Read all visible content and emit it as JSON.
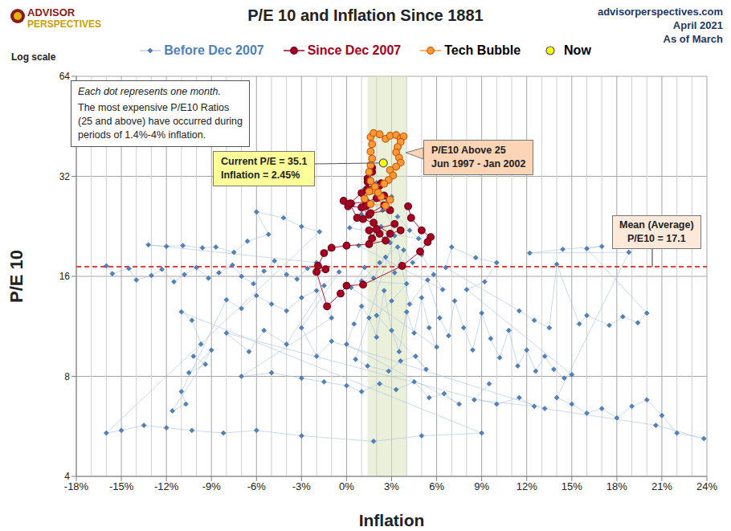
{
  "chart_data": {
    "type": "scatter",
    "title": "P/E 10 and Inflation Since 1881",
    "logo": [
      "ADVISOR",
      "PERSPECTIVES"
    ],
    "source": [
      "advisorperspectives.com",
      "April 2021",
      "As of March"
    ],
    "x_label": "Inflation",
    "y_label": "P/E 10",
    "y_scale_label": "Log scale",
    "log": "y",
    "grid": true,
    "legend": "top",
    "xlim": [
      -18,
      24
    ],
    "xticks": [
      {
        "value": -18,
        "label": "-18%"
      },
      {
        "value": -15,
        "label": "-15%"
      },
      {
        "value": -12,
        "label": "-12%"
      },
      {
        "value": -9,
        "label": "-9%"
      },
      {
        "value": -6,
        "label": "-6%"
      },
      {
        "value": -3,
        "label": "-3%"
      },
      {
        "value": 0,
        "label": "0%"
      },
      {
        "value": 3,
        "label": "3%"
      },
      {
        "value": 6,
        "label": "6%"
      },
      {
        "value": 9,
        "label": "9%"
      },
      {
        "value": 12,
        "label": "12%"
      },
      {
        "value": 15,
        "label": "15%"
      },
      {
        "value": 18,
        "label": "18%"
      },
      {
        "value": 21,
        "label": "21%"
      },
      {
        "value": 24,
        "label": "24%"
      }
    ],
    "ylim": [
      4,
      64
    ],
    "yticks": [
      4,
      8,
      16,
      32,
      64
    ],
    "band": [
      1.4,
      4
    ],
    "mean": {
      "value": 17.1,
      "label": [
        "Mean (Average)",
        "P/E10 = 17.1"
      ]
    },
    "note": [
      "Each dot represents one month.",
      "The most expensive P/E10 Ratios",
      "(25 and above) have occurred during",
      "periods of 1.4%-4% inflation."
    ],
    "annotations": [
      {
        "text": [
          "Current P/E = 35.1",
          "Inflation = 2.45%"
        ],
        "color": "#ffff99"
      },
      {
        "text": [
          "P/E10 Above 25",
          "Jun 1997 - Jan 2002"
        ],
        "color": "#fbd5b5"
      }
    ],
    "series": [
      {
        "name": "Before Dec 2007",
        "color": "#4f81bd",
        "marker": "diamond",
        "line_style": "solid",
        "x": [
          -16,
          -15.6,
          -14.5,
          -14,
          -13,
          -12.3,
          -11.5,
          -10.8,
          -10,
          -9.2,
          -8.5,
          -7.6,
          -7,
          -6.2,
          -5.5,
          -4.8,
          -4,
          -3.3,
          -2.6,
          -2,
          -13.2,
          -12,
          -10.9,
          -9.6,
          -8.7,
          -7.5,
          -6.6,
          -5.2,
          -6,
          -4.2,
          -3,
          -1.8,
          -16,
          -15,
          -13.5,
          -12,
          -10.3,
          -8.2,
          -6,
          -3,
          1.8,
          5,
          9,
          -11,
          -10.3,
          -9.7,
          -10.2,
          -9.4,
          -10.5,
          -9,
          -11.6,
          -10.7,
          -11,
          -8,
          -7,
          -6,
          -5,
          -4,
          -3,
          -2,
          -1,
          -7,
          -5,
          -3,
          -1.5,
          0,
          1,
          2.2,
          3.3,
          4.5,
          5.5,
          6.5,
          7.5,
          0,
          0.5,
          1,
          1.5,
          2,
          2.5,
          3,
          3.5,
          4,
          4.5,
          5,
          5.5,
          6,
          0.3,
          1.2,
          1.8,
          2.6,
          3.2,
          3.8,
          4.4,
          5,
          5.8,
          6.4,
          0.8,
          1.6,
          2.3,
          2.9,
          3.4,
          4.2,
          4.8,
          0.2,
          1,
          1.7,
          2.4,
          3,
          1.2,
          2,
          3.2,
          0.6,
          1.4,
          2.8,
          3.6,
          4.6,
          5.3,
          2,
          3,
          4,
          1,
          2.2,
          3.4,
          4.2,
          5.4,
          6.2,
          6.8,
          7.2,
          7.8,
          8.4,
          9,
          9.6,
          10.2,
          10.8,
          11.4,
          12,
          12.6,
          13.2,
          13.8,
          14.5,
          15,
          8,
          9.2,
          10,
          8.6,
          7,
          6.6,
          11.5,
          12.5,
          13.5,
          14,
          15.5,
          16,
          17.5,
          18.4,
          19.4,
          20,
          16,
          17,
          14.4,
          12.2,
          18.8,
          14,
          15,
          16,
          17,
          18,
          19,
          20,
          21,
          22,
          23.8,
          20.6,
          13.2,
          -1,
          -2,
          -3,
          -0.5,
          -1.5,
          -4,
          -5.5,
          -6.5,
          -8,
          10,
          11.5,
          12.5,
          8.5,
          9.5
        ],
        "values": [
          17.2,
          16.3,
          16.9,
          15.6,
          16.1,
          16.8,
          15.4,
          16.2,
          17,
          15.8,
          16.4,
          17.3,
          16,
          15.2,
          16.6,
          17.8,
          16.2,
          15.7,
          16.9,
          17.6,
          19.9,
          19.7,
          19.8,
          19.5,
          19.6,
          18.9,
          20.4,
          21.4,
          25,
          24,
          22.6,
          21.8,
          5.4,
          5.5,
          5.7,
          5.6,
          5.5,
          5.4,
          5.5,
          5.3,
          5.1,
          5.3,
          5.4,
          12.5,
          11.8,
          10,
          9.2,
          8.7,
          8.2,
          9.6,
          6.3,
          6.6,
          7.2,
          13.6,
          12.8,
          14,
          13.2,
          12.6,
          13.8,
          14.5,
          12,
          8,
          8.2,
          7.9,
          7.7,
          7.5,
          7.2,
          7.6,
          7.3,
          7.7,
          6.9,
          7.1,
          6.6,
          10,
          11.5,
          13,
          12,
          10.5,
          14.5,
          11,
          9.5,
          12.5,
          10.8,
          13.8,
          11.2,
          9.8,
          14.8,
          17,
          15.8,
          18.3,
          16.4,
          19.2,
          17.6,
          18.6,
          16.2,
          14.6,
          19.8,
          21,
          22.6,
          20.2,
          24.2,
          22,
          20.8,
          22.4,
          24.6,
          26.6,
          25.3,
          27.8,
          29.4,
          30.6,
          21.2,
          9,
          8.6,
          8.3,
          8.9,
          9.2,
          8.4,
          12.2,
          13.5,
          15.2,
          15.5,
          17.6,
          19.6,
          13.2,
          15.6,
          12,
          10.6,
          13.5,
          11.2,
          9.6,
          12.4,
          10.4,
          9.1,
          11,
          8.6,
          9.6,
          8.3,
          9.2,
          8.4,
          7.9,
          8.1,
          14.6,
          15.4,
          17.6,
          18.2,
          19.6,
          17,
          12.6,
          11.8,
          11.2,
          17.4,
          11.5,
          12.2,
          11.4,
          12.1,
          11.6,
          12.4,
          19.4,
          19.7,
          19.3,
          18.8,
          18.9,
          6.9,
          6.6,
          6.2,
          6.4,
          6,
          6.5,
          6.8,
          6.1,
          5.4,
          5.2,
          5.7,
          6.4,
          10.2,
          9.2,
          11.2,
          16.5,
          15,
          10,
          11,
          9.5,
          10.8,
          6.6,
          6.9,
          6.5,
          6.8,
          7.6
        ]
      },
      {
        "name": "Since Dec 2007",
        "color": "#a50021",
        "marker": "circle",
        "line_style": "solid",
        "x": [
          4.1,
          4.3,
          5,
          5.6,
          5.4,
          4.9,
          3.7,
          1.1,
          0,
          -0.4,
          -1.3,
          -2,
          -1.4,
          -1.9,
          -1.5,
          -1,
          0,
          1.5,
          2.6,
          2.2,
          1.5,
          1.7,
          2,
          3.2,
          3.6,
          2.9,
          1.8,
          1.1,
          1.5,
          1,
          0.1,
          -0.2,
          0.3,
          1.3,
          2,
          2.5,
          1.6,
          2.9,
          2.5,
          1.8,
          1.4,
          2.3,
          2.2,
          1.4,
          1.3,
          0.7,
          0.2,
          1,
          1.4,
          1.7,
          1.7
        ],
        "values": [
          26,
          24,
          22,
          21,
          20.3,
          19,
          17.2,
          15.1,
          15,
          14.2,
          13,
          16.5,
          16.8,
          17.2,
          18.8,
          19.5,
          19.8,
          20,
          20.5,
          21.5,
          22,
          20.8,
          22.2,
          23,
          22,
          21.5,
          23.2,
          23.8,
          24.5,
          25.8,
          26,
          27,
          26.5,
          26.8,
          27.5,
          26.2,
          24.8,
          25.3,
          28,
          29.5,
          29.2,
          30.5,
          30,
          31.5,
          26,
          24,
          26.5,
          28.5,
          30.8,
          33,
          34
        ]
      },
      {
        "name": "Tech Bubble",
        "color": "#ff9933",
        "marker": "circle",
        "line_style": "solid",
        "x": [
          2.3,
          1.7,
          1.6,
          1.5,
          1.6,
          1.7,
          1.6,
          1.7,
          1.6,
          1.8,
          2.2,
          2.6,
          2.9,
          3.3,
          3.6,
          3.8,
          3.6,
          3.4,
          3.3,
          3.5,
          3.6,
          3.3,
          2.9,
          3.1,
          2.8,
          2.5,
          1.9,
          1.5,
          1.2,
          1.6,
          2.6,
          2.9,
          2.1
        ],
        "values": [
          27.8,
          29,
          31,
          33,
          34.6,
          36.2,
          38,
          40,
          42,
          43.2,
          42.8,
          41.5,
          42.4,
          42.6,
          41.6,
          42.2,
          40.6,
          39.2,
          37.8,
          36.4,
          35.2,
          34.2,
          33.4,
          32.2,
          31.2,
          30.4,
          29.8,
          28.8,
          27.4,
          26.4,
          26.1,
          27.2,
          28.6
        ]
      },
      {
        "name": "Now",
        "color": "#ffff00",
        "marker": "circle",
        "x": [
          2.45
        ],
        "values": [
          35.1
        ]
      }
    ]
  }
}
